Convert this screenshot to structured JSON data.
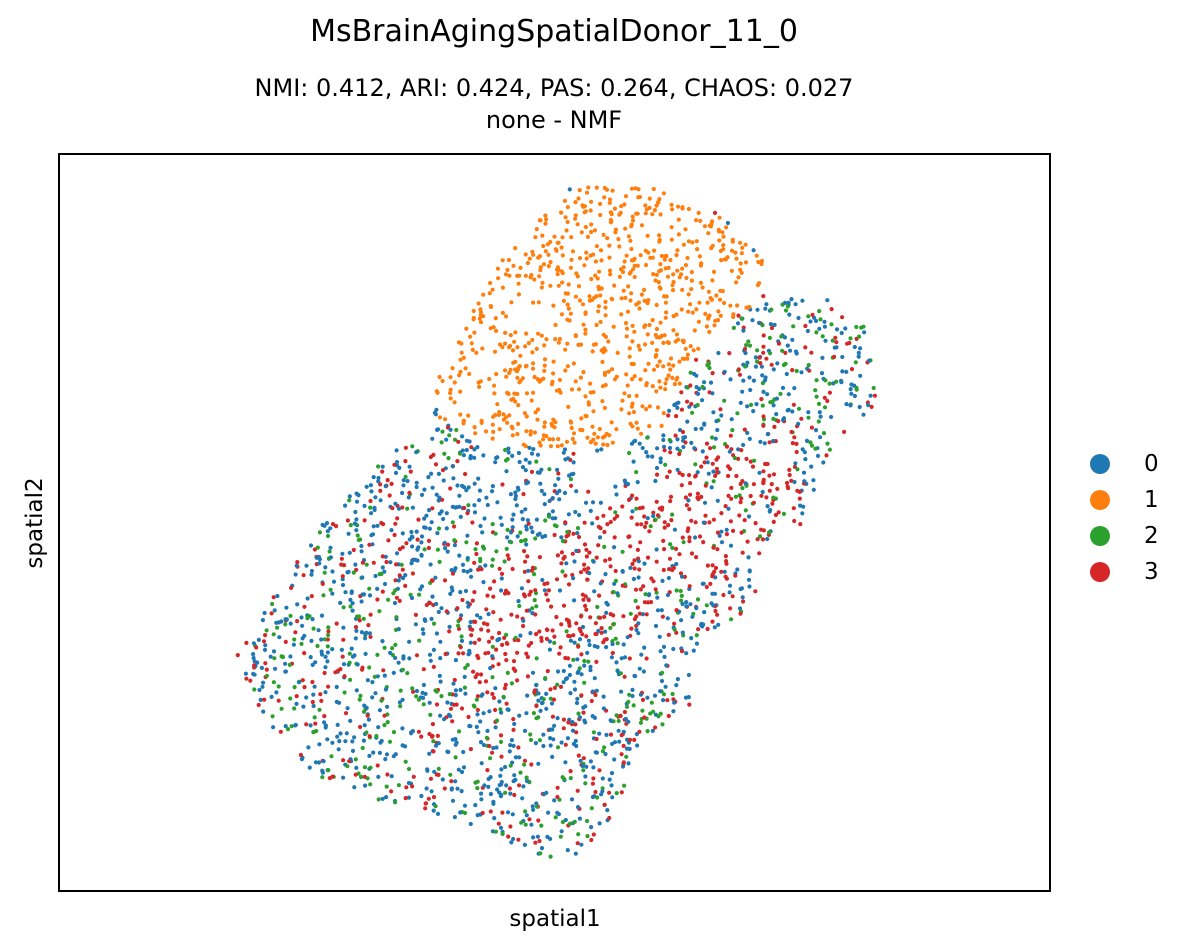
{
  "chart_data": {
    "type": "scatter",
    "title": "MsBrainAgingSpatialDonor_11_0",
    "subtitle_line1": "NMI: 0.412,  ARI: 0.424,  PAS: 0.264,  CHAOS: 0.027",
    "subtitle_line2": "none - NMF",
    "xlabel": "spatial1",
    "ylabel": "spatial2",
    "xticks": [],
    "yticks": [],
    "grid": false,
    "legend_position": "right",
    "series": [
      {
        "name": "0",
        "color": "#1f77b4"
      },
      {
        "name": "1",
        "color": "#ff7f0e"
      },
      {
        "name": "2",
        "color": "#2ca02c"
      },
      {
        "name": "3",
        "color": "#d62728"
      }
    ]
  }
}
